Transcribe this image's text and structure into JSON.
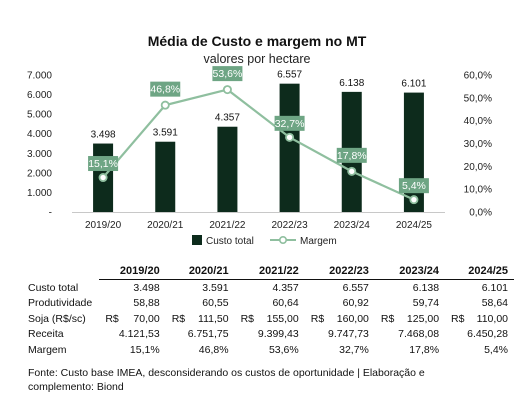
{
  "chart_data": {
    "type": "bar",
    "title": "Média de Custo e margem no MT",
    "subtitle": "valores por hectare",
    "categories": [
      "2019/20",
      "2020/21",
      "2021/22",
      "2022/23",
      "2023/24",
      "2024/25"
    ],
    "series": [
      {
        "name": "Custo total",
        "type": "bar",
        "axis": "left",
        "values": [
          3498,
          3591,
          4357,
          6557,
          6138,
          6101
        ],
        "labels": [
          "3.498",
          "3.591",
          "4.357",
          "6.557",
          "6.138",
          "6.101"
        ],
        "color": "#0d2b1c"
      },
      {
        "name": "Margem",
        "type": "line",
        "axis": "right",
        "values": [
          15.1,
          46.8,
          53.6,
          32.7,
          17.8,
          5.4
        ],
        "labels": [
          "15,1%",
          "46,8%",
          "53,6%",
          "32,7%",
          "17,8%",
          "5,4%"
        ],
        "color": "#8fbf9f",
        "label_bg": "#6ea584"
      }
    ],
    "ylim_left": [
      0,
      7000
    ],
    "ylim_right": [
      0,
      60
    ],
    "left_ticks": [
      "-",
      "1.000",
      "2.000",
      "3.000",
      "4.000",
      "5.000",
      "6.000",
      "7.000"
    ],
    "right_ticks": [
      "0,0%",
      "10,0%",
      "20,0%",
      "30,0%",
      "40,0%",
      "50,0%",
      "60,0%"
    ],
    "legend_position": "bottom",
    "grid": false
  },
  "table": {
    "headers": [
      "",
      "2019/20",
      "2020/21",
      "2021/22",
      "2022/23",
      "2023/24",
      "2024/25"
    ],
    "rows": [
      {
        "label": "Custo total",
        "cells": [
          "3.498",
          "3.591",
          "4.357",
          "6.557",
          "6.138",
          "6.101"
        ]
      },
      {
        "label": "Produtividade",
        "cells": [
          "58,88",
          "60,55",
          "60,64",
          "60,92",
          "59,74",
          "58,64"
        ]
      },
      {
        "label": "Soja (R$/sc)",
        "currency": "R$",
        "cells": [
          "70,00",
          "111,50",
          "155,00",
          "160,00",
          "125,00",
          "110,00"
        ]
      },
      {
        "label": "Receita",
        "cells": [
          "4.121,53",
          "6.751,75",
          "9.399,43",
          "9.747,73",
          "7.468,08",
          "6.450,28"
        ]
      },
      {
        "label": "Margem",
        "cells": [
          "15,1%",
          "46,8%",
          "53,6%",
          "32,7%",
          "17,8%",
          "5,4%"
        ]
      }
    ]
  },
  "footnote": "Fonte: Custo base IMEA, desconsiderando os custos de oportunidade | Elaboração e complemento: Biond"
}
